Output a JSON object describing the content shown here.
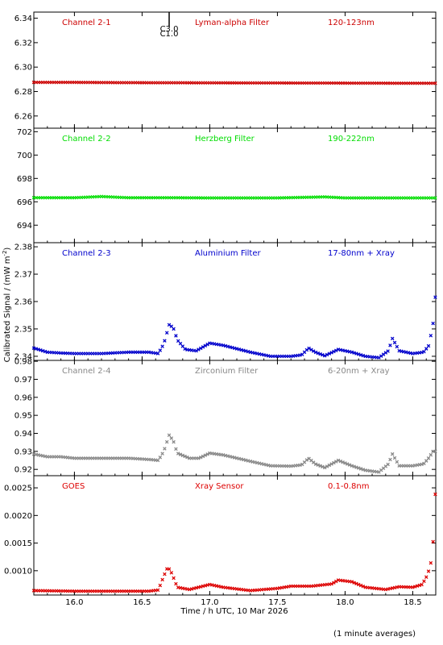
{
  "footnote": "(1 minute averages)",
  "chart_data": {
    "type": "scatter",
    "x_axis": {
      "label": "Time / h UTC, 10 Mar 2026",
      "range": [
        15.7,
        18.67
      ],
      "ticks": [
        16.0,
        16.5,
        17.0,
        17.5,
        18.0,
        18.5
      ],
      "tick_labels": [
        "16.0",
        "16.5",
        "17.0",
        "17.5",
        "18.0",
        "18.5"
      ]
    },
    "y_axis_label_main": "Calibrated Signal / (mW m",
    "y_axis_label_sup": "-2",
    "y_axis_label_end": ")",
    "flare_marker": {
      "x": 16.7,
      "labels": [
        "C3.0",
        "C1.0"
      ]
    },
    "panels": [
      {
        "name": "Channel 2-1",
        "filter": "Lyman-alpha Filter",
        "band": "120-123nm",
        "color": "#cc0000",
        "ylim": [
          6.25,
          6.345
        ],
        "yticks": [
          6.26,
          6.28,
          6.3,
          6.32,
          6.34
        ],
        "ytick_labels": [
          "6.26",
          "6.28",
          "6.30",
          "6.32",
          "6.34"
        ],
        "series": [
          [
            15.7,
            6.2875
          ],
          [
            16.0,
            6.2875
          ],
          [
            16.3,
            6.2873
          ],
          [
            16.6,
            6.2872
          ],
          [
            16.7,
            6.2872
          ],
          [
            17.0,
            6.2871
          ],
          [
            17.5,
            6.287
          ],
          [
            18.0,
            6.2869
          ],
          [
            18.4,
            6.2868
          ],
          [
            18.67,
            6.2868
          ]
        ]
      },
      {
        "name": "Channel 2-2",
        "filter": "Herzberg Filter",
        "band": "190-222nm",
        "color": "#00dd00",
        "ylim": [
          692.5,
          702.3
        ],
        "yticks": [
          694,
          696,
          698,
          700,
          702
        ],
        "ytick_labels": [
          "694",
          "696",
          "698",
          "700",
          "702"
        ],
        "series": [
          [
            15.7,
            696.35
          ],
          [
            16.0,
            696.35
          ],
          [
            16.2,
            696.45
          ],
          [
            16.4,
            696.35
          ],
          [
            16.7,
            696.35
          ],
          [
            17.0,
            696.33
          ],
          [
            17.5,
            696.33
          ],
          [
            17.85,
            696.42
          ],
          [
            18.0,
            696.33
          ],
          [
            18.67,
            696.33
          ]
        ]
      },
      {
        "name": "Channel 2-3",
        "filter": "Aluminium Filter",
        "band": "17-80nm + Xray",
        "color": "#0000cc",
        "ylim": [
          2.3385,
          2.3815
        ],
        "yticks": [
          2.34,
          2.35,
          2.36,
          2.37,
          2.38
        ],
        "ytick_labels": [
          "2.34",
          "2.35",
          "2.36",
          "2.37",
          "2.38"
        ],
        "series": [
          [
            15.7,
            2.343
          ],
          [
            15.8,
            2.3415
          ],
          [
            15.9,
            2.3412
          ],
          [
            16.0,
            2.341
          ],
          [
            16.2,
            2.341
          ],
          [
            16.4,
            2.3415
          ],
          [
            16.55,
            2.3415
          ],
          [
            16.62,
            2.341
          ],
          [
            16.66,
            2.3445
          ],
          [
            16.7,
            2.3515
          ],
          [
            16.73,
            2.3505
          ],
          [
            16.76,
            2.346
          ],
          [
            16.82,
            2.3425
          ],
          [
            16.9,
            2.342
          ],
          [
            17.0,
            2.3448
          ],
          [
            17.1,
            2.344
          ],
          [
            17.3,
            2.3415
          ],
          [
            17.45,
            2.34
          ],
          [
            17.6,
            2.34
          ],
          [
            17.68,
            2.3405
          ],
          [
            17.73,
            2.343
          ],
          [
            17.78,
            2.3415
          ],
          [
            17.85,
            2.3402
          ],
          [
            17.95,
            2.3425
          ],
          [
            18.05,
            2.3415
          ],
          [
            18.15,
            2.34
          ],
          [
            18.25,
            2.3395
          ],
          [
            18.32,
            2.342
          ],
          [
            18.35,
            2.3465
          ],
          [
            18.4,
            2.342
          ],
          [
            18.5,
            2.341
          ],
          [
            18.58,
            2.3415
          ],
          [
            18.62,
            2.344
          ],
          [
            18.65,
            2.352
          ],
          [
            18.67,
            2.3635
          ]
        ]
      },
      {
        "name": "Channel 2-4",
        "filter": "Zirconium Filter",
        "band": "6-20nm + Xray",
        "color": "#888888",
        "ylim": [
          0.9165,
          0.9805
        ],
        "yticks": [
          0.92,
          0.93,
          0.94,
          0.95,
          0.96,
          0.97,
          0.98
        ],
        "ytick_labels": [
          "0.92",
          "0.93",
          "0.94",
          "0.95",
          "0.96",
          "0.97",
          "0.98"
        ],
        "series": [
          [
            15.7,
            0.9285
          ],
          [
            15.8,
            0.927
          ],
          [
            15.9,
            0.927
          ],
          [
            16.0,
            0.9262
          ],
          [
            16.2,
            0.9262
          ],
          [
            16.4,
            0.9262
          ],
          [
            16.55,
            0.9255
          ],
          [
            16.62,
            0.925
          ],
          [
            16.66,
            0.93
          ],
          [
            16.7,
            0.939
          ],
          [
            16.73,
            0.936
          ],
          [
            16.76,
            0.929
          ],
          [
            16.85,
            0.9262
          ],
          [
            16.92,
            0.9262
          ],
          [
            17.0,
            0.929
          ],
          [
            17.1,
            0.928
          ],
          [
            17.3,
            0.9245
          ],
          [
            17.45,
            0.922
          ],
          [
            17.6,
            0.9218
          ],
          [
            17.68,
            0.9225
          ],
          [
            17.73,
            0.9262
          ],
          [
            17.78,
            0.923
          ],
          [
            17.85,
            0.921
          ],
          [
            17.95,
            0.925
          ],
          [
            18.05,
            0.922
          ],
          [
            18.15,
            0.9195
          ],
          [
            18.25,
            0.9185
          ],
          [
            18.32,
            0.923
          ],
          [
            18.35,
            0.9285
          ],
          [
            18.4,
            0.922
          ],
          [
            18.5,
            0.922
          ],
          [
            18.58,
            0.923
          ],
          [
            18.62,
            0.9265
          ],
          [
            18.65,
            0.93
          ],
          [
            18.67,
            0.93
          ]
        ]
      },
      {
        "name": "GOES",
        "filter": "Xray Sensor",
        "band": "0.1-0.8nm",
        "color": "#dd0000",
        "ylim": [
          0.00056,
          0.00272
        ],
        "yticks": [
          0.001,
          0.0015,
          0.002,
          0.0025
        ],
        "ytick_labels": [
          "0.0010",
          "0.0015",
          "0.0020",
          "0.0025"
        ],
        "series": [
          [
            15.7,
            0.00064
          ],
          [
            16.0,
            0.00063
          ],
          [
            16.3,
            0.00063
          ],
          [
            16.55,
            0.00063
          ],
          [
            16.62,
            0.00065
          ],
          [
            16.66,
            0.0009
          ],
          [
            16.69,
            0.00107
          ],
          [
            16.72,
            0.00095
          ],
          [
            16.76,
            0.0007
          ],
          [
            16.85,
            0.00066
          ],
          [
            17.0,
            0.00075
          ],
          [
            17.1,
            0.0007
          ],
          [
            17.3,
            0.00064
          ],
          [
            17.5,
            0.00068
          ],
          [
            17.6,
            0.00072
          ],
          [
            17.75,
            0.00072
          ],
          [
            17.9,
            0.00076
          ],
          [
            17.95,
            0.00083
          ],
          [
            18.05,
            0.0008
          ],
          [
            18.15,
            0.0007
          ],
          [
            18.3,
            0.00066
          ],
          [
            18.4,
            0.00071
          ],
          [
            18.5,
            0.0007
          ],
          [
            18.57,
            0.00075
          ],
          [
            18.61,
            0.00093
          ],
          [
            18.64,
            0.0012
          ],
          [
            18.66,
            0.00185
          ],
          [
            18.67,
            0.00265
          ]
        ]
      }
    ]
  }
}
